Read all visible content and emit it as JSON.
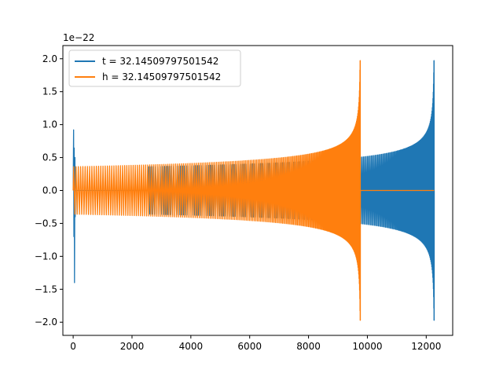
{
  "chart_data": {
    "type": "line",
    "title": "",
    "xlabel": "",
    "ylabel": "",
    "y_offset_label": "1e−22",
    "xlim": [
      -350,
      12900
    ],
    "ylim": [
      -2.2,
      2.2
    ],
    "x_ticks": [
      0,
      2000,
      4000,
      6000,
      8000,
      10000,
      12000
    ],
    "x_tick_labels": [
      "0",
      "2000",
      "4000",
      "6000",
      "8000",
      "10000",
      "12000"
    ],
    "y_ticks": [
      -2.0,
      -1.5,
      -1.0,
      -0.5,
      0.0,
      0.5,
      1.0,
      1.5,
      2.0
    ],
    "y_tick_labels": [
      "−2.0",
      "−1.5",
      "−1.0",
      "−0.5",
      "0.0",
      "0.5",
      "1.0",
      "1.5",
      "2.0"
    ],
    "grid": false,
    "legend_position": "upper-left",
    "series": [
      {
        "name": "t = 32.14509797501542",
        "color": "#1f77b4",
        "description": "oscillating chirp: short burst near x=0 (peaks +0.92, -1.40), gap, then growing oscillation from x≈2550 to x≈12270 with peak ±1.97 near 12270, zero afterwards",
        "x_start": 0,
        "x_burst_end": 80,
        "burst_max": 0.92,
        "burst_min": -1.4,
        "x_wave_start": 2550,
        "x_merger": 12270,
        "x_end": 12270,
        "amp_start": 0.36,
        "amp_peak": 1.97
      },
      {
        "name": "h = 32.14509797501542",
        "color": "#ff7f0e",
        "description": "growing oscillation from x≈0 to merger near x≈9760 with peak ±1.97, then flat zero to x≈12270",
        "x_wave_start": 0,
        "x_merger": 9760,
        "x_end": 12270,
        "amp_start": 0.36,
        "amp_peak": 1.97
      }
    ]
  }
}
